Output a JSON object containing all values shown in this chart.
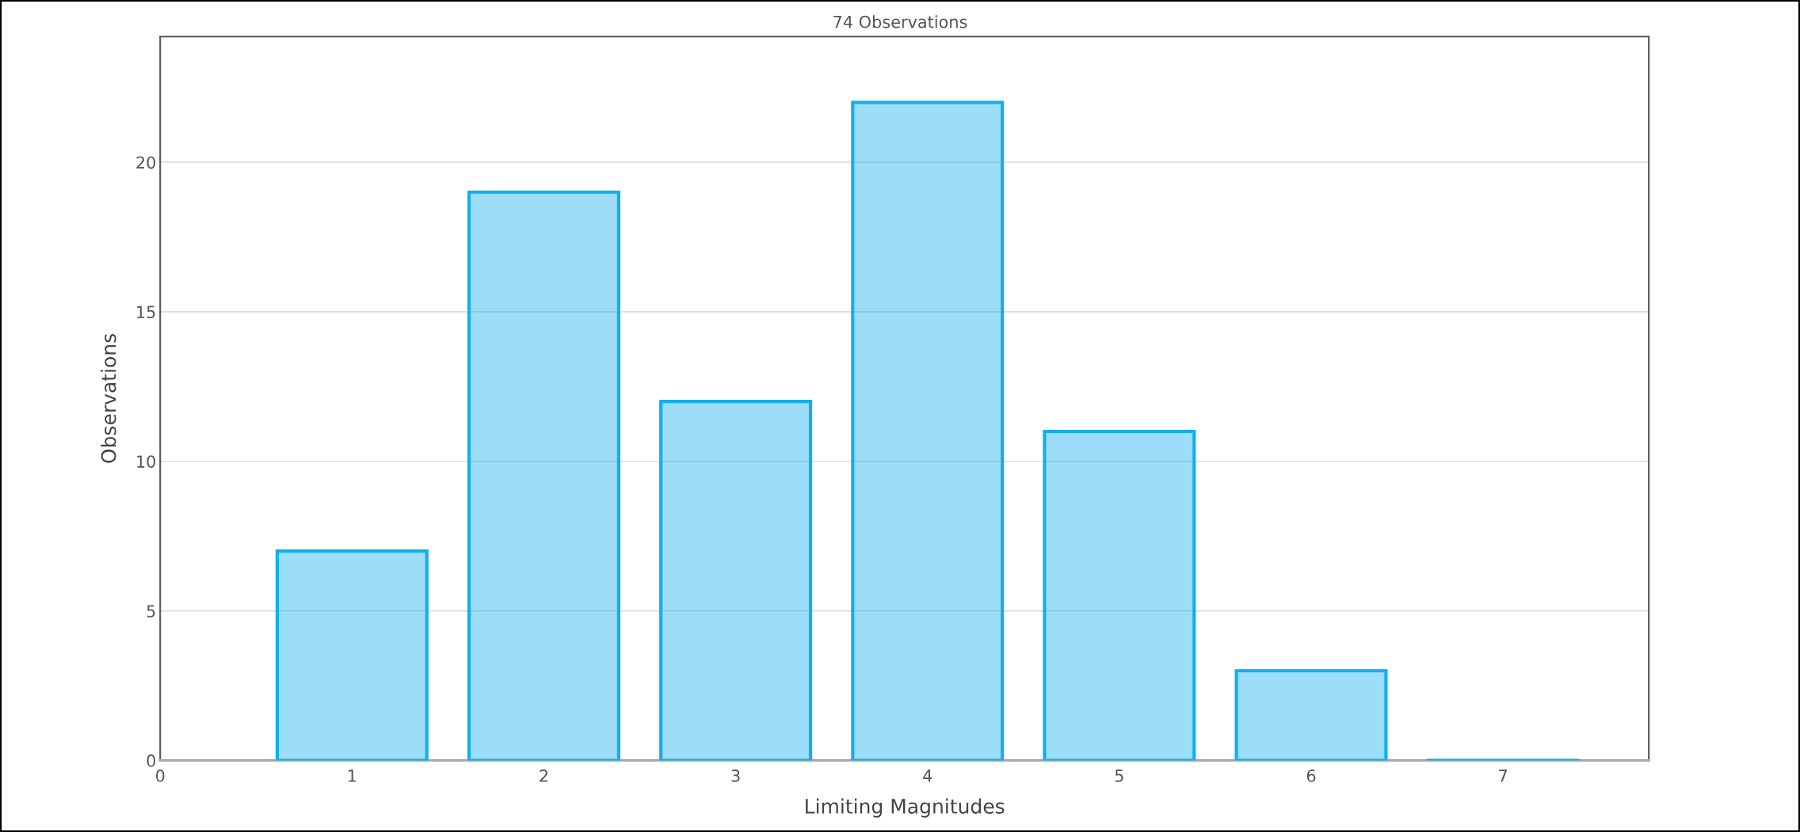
{
  "chart_data": {
    "type": "bar",
    "subtitle": "74 Observations",
    "xlabel": "Limiting Magnitudes",
    "ylabel": "Observations",
    "x": [
      1,
      2,
      3,
      4,
      5,
      6,
      7
    ],
    "series": [
      {
        "color": "#14aeee",
        "values": [
          7,
          19,
          12,
          22,
          11,
          3,
          0
        ]
      }
    ],
    "xlim": [
      0,
      7.76
    ],
    "xticks": [
      0,
      1,
      2,
      3,
      4,
      5,
      6,
      7
    ],
    "ylim": [
      0,
      24.2
    ],
    "yticks": [
      0,
      5,
      10,
      15,
      20
    ],
    "grid": "y"
  }
}
